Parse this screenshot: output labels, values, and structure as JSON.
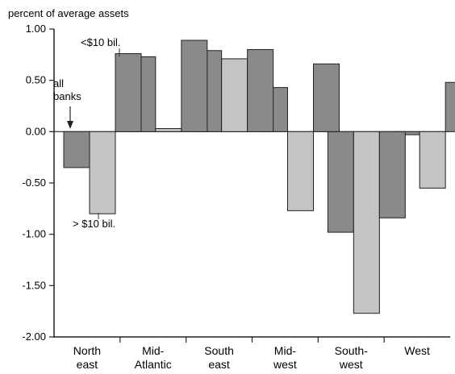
{
  "chart_data": {
    "type": "bar",
    "ylabel": "percent of average assets",
    "xlabel": "",
    "ylim": [
      -2.0,
      1.0
    ],
    "yticks": [
      "1.00",
      "0.50",
      "0.00",
      "-0.50",
      "-1.00",
      "-1.50",
      "-2.00"
    ],
    "grid": false,
    "categories": [
      [
        "North",
        "east"
      ],
      [
        "Mid-",
        "Atlantic"
      ],
      [
        "South",
        "east"
      ],
      [
        "Mid-",
        "west"
      ],
      [
        "South-",
        "west"
      ],
      [
        "West",
        ""
      ]
    ],
    "series": [
      {
        "values": [
          -0.35,
          0.73,
          0.79,
          0.43,
          -0.98,
          -0.03
        ],
        "color": "#8a8a8a"
      },
      {
        "values": [
          -0.8,
          0.03,
          0.71,
          -0.77,
          -1.77,
          -0.55
        ],
        "color": "#c4c4c4"
      },
      {
        "values": [
          0.76,
          0.89,
          0.8,
          0.66,
          -0.84,
          0.48
        ],
        "color": "#8a8a8a"
      }
    ],
    "annotations": {
      "small_banks": "<$10 bil.",
      "all_banks": [
        "all",
        "banks"
      ],
      "large_banks": "> $10 bil."
    }
  }
}
